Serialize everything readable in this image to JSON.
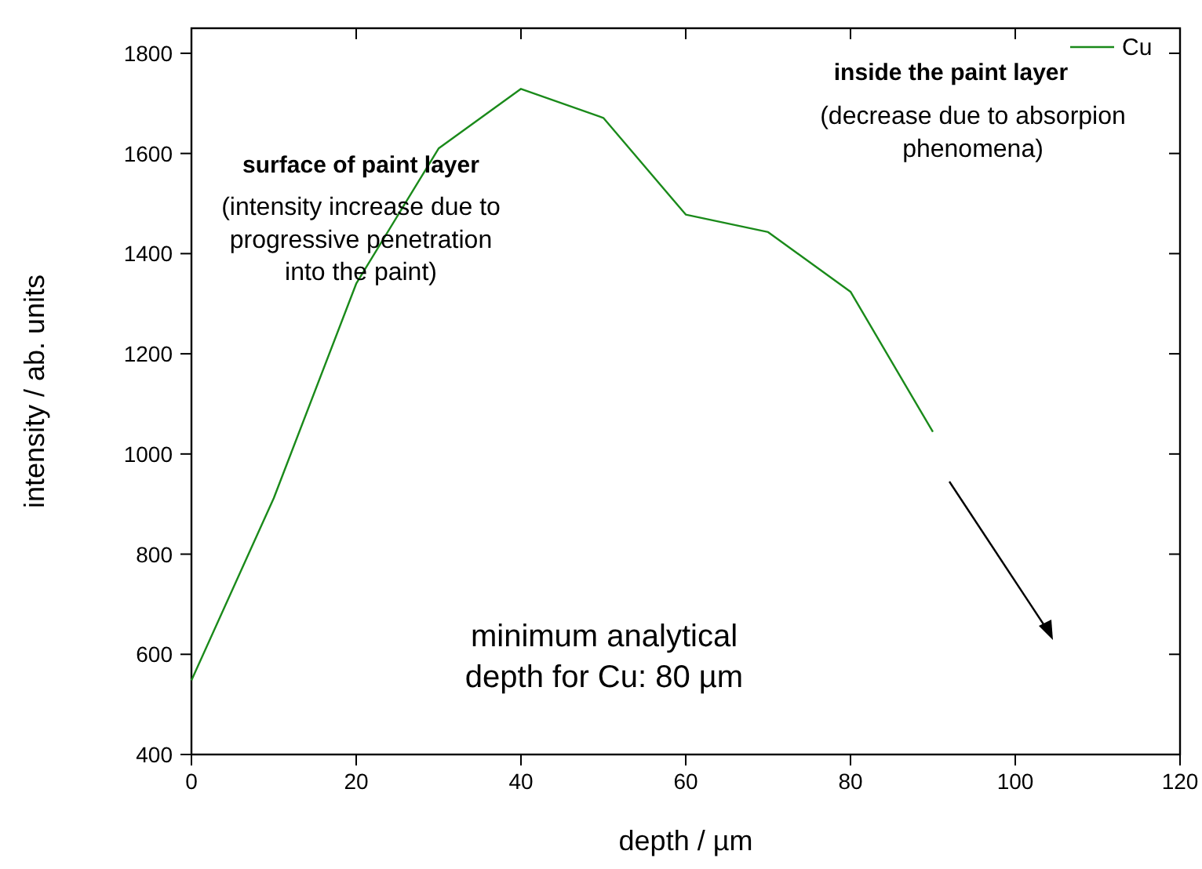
{
  "chart_data": {
    "type": "line",
    "xlabel": "depth / µm",
    "ylabel": "intensity / ab. units",
    "x": [
      0,
      10,
      20,
      30,
      40,
      50,
      60,
      70,
      80,
      90
    ],
    "series": [
      {
        "name": "Cu",
        "color": "#1a8a1a",
        "values": [
          548,
          912,
          1340,
          1610,
          1729,
          1671,
          1478,
          1443,
          1324,
          1044
        ]
      }
    ],
    "xlim": [
      0,
      120
    ],
    "xticks": [
      0,
      20,
      40,
      60,
      80,
      100,
      120
    ],
    "ylim": [
      400,
      1850
    ],
    "yticks": [
      400,
      600,
      800,
      1000,
      1200,
      1400,
      1600,
      1800
    ],
    "legend": "top right",
    "marker": "none",
    "line_style": "solid",
    "grid": false,
    "annotations": [
      "surface of paint layer",
      "(intensity increase due to\nprogressive penetration\ninto the paint)",
      "inside the paint layer",
      "(decrease due to absorpion\nphenomena)",
      "minimum analytical\ndepth for Cu: 80 µm"
    ]
  }
}
